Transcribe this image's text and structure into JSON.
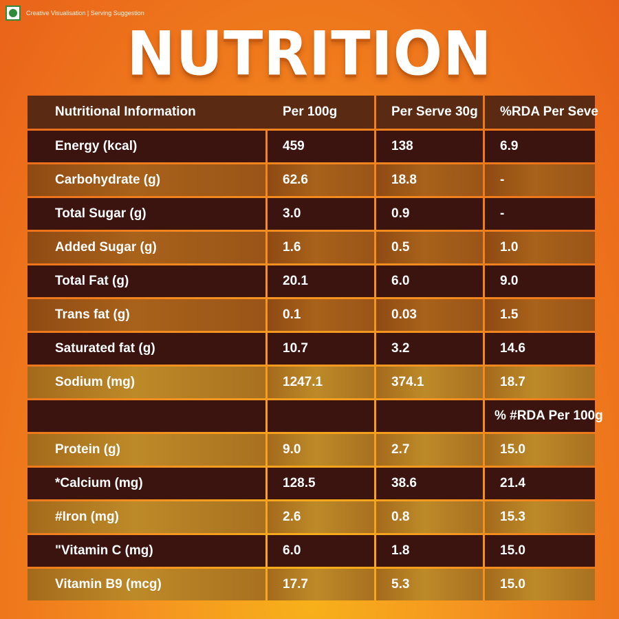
{
  "header_note": "Creative Visualisation | Serving Suggestion",
  "veg_badge_icon": "veg-symbol-icon",
  "title": "NUTRITION",
  "table": {
    "columns": [
      "Nutritional Information",
      "Per 100g",
      "Per Serve 30g",
      "%RDA Per Seve"
    ],
    "rows": [
      [
        "Energy (kcal)",
        "459",
        "138",
        "6.9"
      ],
      [
        "Carbohydrate (g)",
        "62.6",
        "18.8",
        "-"
      ],
      [
        "Total Sugar (g)",
        "3.0",
        "0.9",
        "-"
      ],
      [
        "Added Sugar (g)",
        "1.6",
        "0.5",
        "1.0"
      ],
      [
        "Total Fat (g)",
        "20.1",
        "6.0",
        "9.0"
      ],
      [
        "Trans fat (g)",
        "0.1",
        "0.03",
        "1.5"
      ],
      [
        "Saturated fat (g)",
        "10.7",
        "3.2",
        "14.6"
      ],
      [
        "Sodium (mg)",
        "1247.1",
        "374.1",
        "18.7"
      ],
      [
        "",
        "",
        "",
        "% #RDA Per 100g"
      ],
      [
        "Protein (g)",
        "9.0",
        "2.7",
        "15.0"
      ],
      [
        "*Calcium (mg)",
        "128.5",
        "38.6",
        "21.4"
      ],
      [
        "#Iron (mg)",
        "2.6",
        "0.8",
        "15.3"
      ],
      [
        "\"Vitamin C (mg)",
        "6.0",
        "1.8",
        "15.0"
      ],
      [
        "Vitamin B9 (mcg)",
        "17.7",
        "5.3",
        "15.0"
      ]
    ]
  },
  "colors": {
    "background": "#ef7a1c",
    "header_row": "#5a2a12",
    "dark_row": "#3b1410",
    "light_row": "#a8621a",
    "veg_green": "#2e8b3a"
  }
}
